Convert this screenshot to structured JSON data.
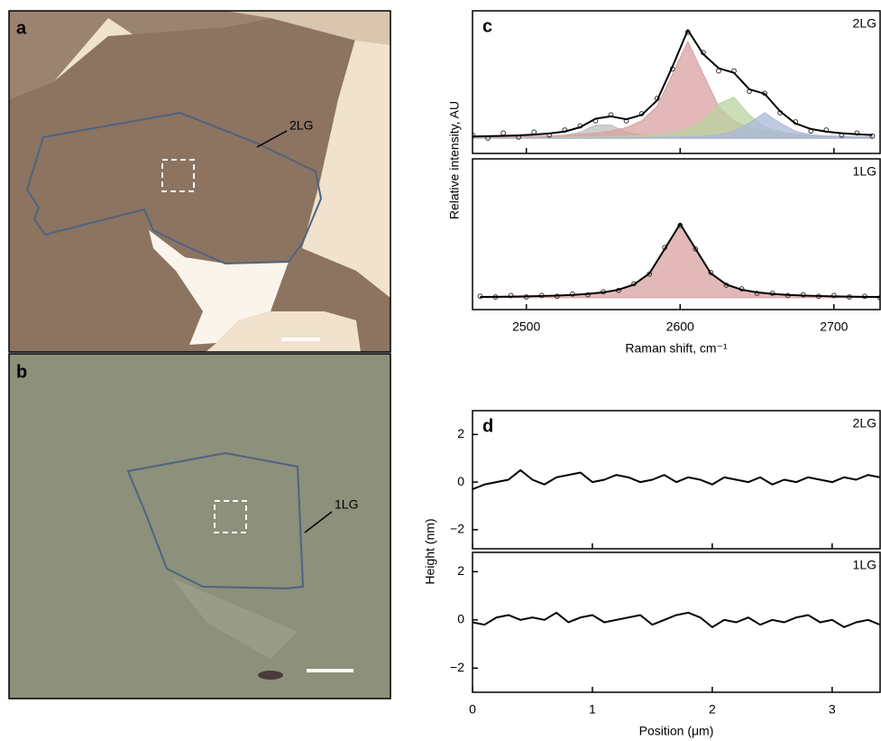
{
  "images": [
    {
      "panel": "a",
      "label": "2LG"
    },
    {
      "panel": "b",
      "label": "1LG"
    }
  ],
  "chart_data": [
    {
      "type": "line",
      "panel": "c",
      "annotation": "2LG",
      "ylabel": "Relative intensity, AU",
      "xlim": [
        2465,
        2730
      ],
      "ylim": [
        -0.15,
        1.25
      ],
      "xticks": [
        2500,
        2600,
        2700
      ],
      "x": [
        2465,
        2475,
        2485,
        2495,
        2505,
        2515,
        2525,
        2535,
        2545,
        2555,
        2565,
        2575,
        2585,
        2595,
        2605,
        2615,
        2625,
        2635,
        2645,
        2655,
        2665,
        2675,
        2685,
        2695,
        2705,
        2715,
        2725
      ],
      "series": [
        {
          "style": "area",
          "color": "#bdbdbd",
          "values": [
            0.003,
            0.004,
            0.005,
            0.007,
            0.01,
            0.016,
            0.028,
            0.059,
            0.128,
            0.128,
            0.059,
            0.028,
            0.016,
            0.01,
            0.007,
            0.005,
            0.004,
            0.003,
            0.002,
            0.002,
            0.002,
            0.001,
            0.001,
            0.001,
            0.001,
            0.001,
            0.001
          ]
        },
        {
          "style": "area",
          "color": "#d8a0a0",
          "values": [
            0.009,
            0.011,
            0.013,
            0.015,
            0.018,
            0.022,
            0.028,
            0.037,
            0.049,
            0.069,
            0.104,
            0.17,
            0.313,
            0.629,
            0.95,
            0.629,
            0.313,
            0.17,
            0.104,
            0.069,
            0.049,
            0.037,
            0.028,
            0.022,
            0.018,
            0.015,
            0.013
          ]
        },
        {
          "style": "area",
          "color": "#b9d3a0",
          "values": [
            0.003,
            0.003,
            0.004,
            0.004,
            0.005,
            0.006,
            0.007,
            0.009,
            0.011,
            0.013,
            0.018,
            0.024,
            0.034,
            0.053,
            0.089,
            0.17,
            0.336,
            0.402,
            0.226,
            0.114,
            0.064,
            0.04,
            0.027,
            0.02,
            0.015,
            0.012,
            0.009
          ]
        },
        {
          "style": "area",
          "color": "#a9b8d8",
          "values": [
            0.001,
            0.001,
            0.001,
            0.001,
            0.002,
            0.002,
            0.002,
            0.002,
            0.003,
            0.004,
            0.004,
            0.006,
            0.007,
            0.01,
            0.014,
            0.021,
            0.034,
            0.066,
            0.148,
            0.25,
            0.148,
            0.066,
            0.034,
            0.021,
            0.014,
            0.01,
            0.007
          ]
        },
        {
          "style": "points",
          "color": "#333333",
          "values": [
            0.03,
            0.0,
            0.05,
            0.01,
            0.06,
            0.03,
            0.08,
            0.12,
            0.17,
            0.23,
            0.17,
            0.24,
            0.39,
            0.68,
            1.04,
            0.84,
            0.66,
            0.66,
            0.46,
            0.44,
            0.25,
            0.16,
            0.07,
            0.08,
            0.03,
            0.05,
            0.02
          ]
        },
        {
          "style": "line",
          "color": "#000000",
          "values": [
            0.016,
            0.019,
            0.023,
            0.027,
            0.035,
            0.046,
            0.065,
            0.107,
            0.191,
            0.214,
            0.185,
            0.228,
            0.37,
            0.702,
            1.06,
            0.825,
            0.687,
            0.641,
            0.48,
            0.435,
            0.263,
            0.144,
            0.09,
            0.064,
            0.048,
            0.038,
            0.03
          ]
        }
      ]
    },
    {
      "type": "line",
      "annotation": "1LG",
      "xlabel": "Raman shift, cm⁻¹",
      "xlim": [
        2465,
        2730
      ],
      "ylim": [
        -0.16,
        1.88
      ],
      "xticks": [
        2500,
        2600,
        2700
      ],
      "x": [
        2470,
        2480,
        2490,
        2500,
        2510,
        2520,
        2530,
        2540,
        2550,
        2560,
        2570,
        2580,
        2590,
        2600,
        2610,
        2620,
        2630,
        2640,
        2650,
        2660,
        2670,
        2680,
        2690,
        2700,
        2710,
        2720,
        2730
      ],
      "series": [
        {
          "style": "area",
          "color": "#d8a0a0",
          "values": [
            0.011,
            0.013,
            0.016,
            0.019,
            0.024,
            0.03,
            0.038,
            0.052,
            0.073,
            0.109,
            0.179,
            0.329,
            0.662,
            1.0,
            0.662,
            0.329,
            0.179,
            0.109,
            0.073,
            0.052,
            0.038,
            0.03,
            0.024,
            0.019,
            0.016,
            0.013,
            0.011
          ]
        },
        {
          "style": "points",
          "color": "#333333",
          "values": [
            0.02,
            0.01,
            0.03,
            0.01,
            0.03,
            0.02,
            0.05,
            0.04,
            0.08,
            0.1,
            0.19,
            0.32,
            0.68,
            0.98,
            0.66,
            0.34,
            0.17,
            0.12,
            0.06,
            0.06,
            0.03,
            0.04,
            0.02,
            0.03,
            0.01,
            0.02,
            0.0
          ]
        },
        {
          "style": "line",
          "color": "#000000",
          "values": [
            0.011,
            0.013,
            0.016,
            0.019,
            0.024,
            0.03,
            0.038,
            0.052,
            0.073,
            0.109,
            0.179,
            0.329,
            0.662,
            1.0,
            0.662,
            0.329,
            0.179,
            0.109,
            0.073,
            0.052,
            0.038,
            0.03,
            0.024,
            0.019,
            0.016,
            0.013,
            0.011
          ]
        }
      ]
    },
    {
      "type": "line",
      "panel": "d",
      "annotation": "2LG",
      "ylabel": "Height (nm)",
      "xlim": [
        0,
        3.4
      ],
      "ylim": [
        -2.8,
        3
      ],
      "xticks": [
        0,
        1,
        2,
        3
      ],
      "yticks": [
        {
          "value": -2,
          "label": "−2"
        },
        0,
        2
      ],
      "x": [
        0,
        0.1,
        0.2,
        0.3,
        0.4,
        0.5,
        0.6,
        0.7,
        0.8,
        0.9,
        1,
        1.1,
        1.2,
        1.3,
        1.4,
        1.5,
        1.6,
        1.7,
        1.8,
        1.9,
        2,
        2.1,
        2.2,
        2.3,
        2.4,
        2.5,
        2.6,
        2.7,
        2.8,
        2.9,
        3,
        3.1,
        3.2,
        3.3,
        3.4
      ],
      "series": [
        {
          "style": "line",
          "color": "#000000",
          "values": [
            -0.3,
            -0.1,
            0.0,
            0.1,
            0.5,
            0.1,
            -0.1,
            0.2,
            0.3,
            0.4,
            0.0,
            0.1,
            0.3,
            0.2,
            0.0,
            0.1,
            0.3,
            0.0,
            0.2,
            0.1,
            -0.1,
            0.2,
            0.1,
            0.0,
            0.2,
            -0.1,
            0.1,
            0.0,
            0.2,
            0.1,
            0.0,
            0.2,
            0.1,
            0.3,
            0.2
          ]
        }
      ]
    },
    {
      "type": "line",
      "annotation": "1LG",
      "xlabel": "Position (μm)",
      "xlim": [
        0,
        3.4
      ],
      "ylim": [
        -3,
        2.8
      ],
      "xticks": [
        0,
        1,
        2,
        3
      ],
      "yticks": [
        {
          "value": -2,
          "label": "−2"
        },
        0,
        2
      ],
      "x": [
        0,
        0.1,
        0.2,
        0.3,
        0.4,
        0.5,
        0.6,
        0.7,
        0.8,
        0.9,
        1,
        1.1,
        1.2,
        1.3,
        1.4,
        1.5,
        1.6,
        1.7,
        1.8,
        1.9,
        2,
        2.1,
        2.2,
        2.3,
        2.4,
        2.5,
        2.6,
        2.7,
        2.8,
        2.9,
        3,
        3.1,
        3.2,
        3.3,
        3.4
      ],
      "series": [
        {
          "style": "line",
          "color": "#000000",
          "values": [
            -0.1,
            -0.2,
            0.1,
            0.2,
            0.0,
            0.1,
            0.0,
            0.3,
            -0.1,
            0.1,
            0.2,
            -0.1,
            0.0,
            0.1,
            0.2,
            -0.2,
            0.0,
            0.2,
            0.3,
            0.1,
            -0.3,
            0.0,
            -0.1,
            0.1,
            -0.2,
            0.0,
            -0.1,
            0.1,
            0.2,
            -0.1,
            0.0,
            -0.3,
            -0.1,
            0.0,
            -0.2
          ]
        }
      ]
    }
  ]
}
